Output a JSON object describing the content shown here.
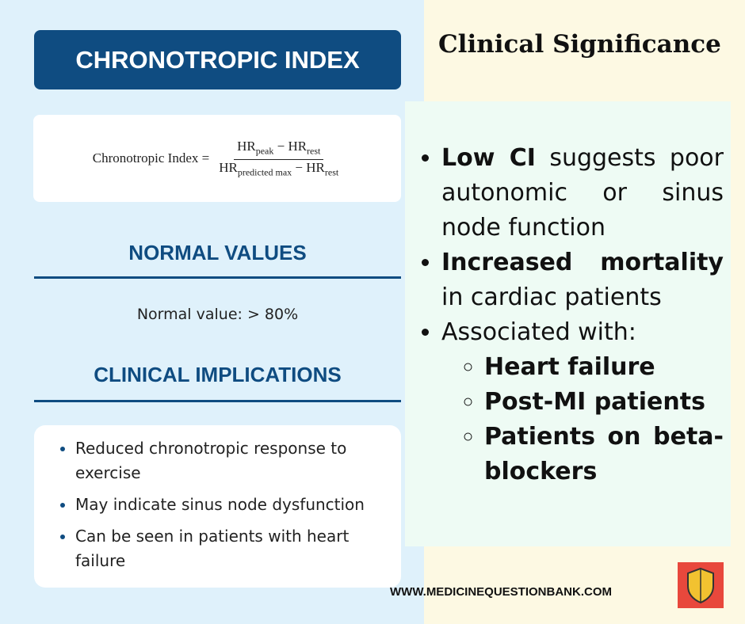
{
  "header": {
    "title": "CHRONOTROPIC INDEX",
    "side_title": "Clinical Significance"
  },
  "formula": {
    "lhs": "Chronotropic Index",
    "equals": "=",
    "minus": "−",
    "numerator": [
      {
        "base": "HR",
        "sub": "peak"
      },
      {
        "base": "HR",
        "sub": "rest"
      }
    ],
    "denominator": [
      {
        "base": "HR",
        "sub": "predicted max"
      },
      {
        "base": "HR",
        "sub": "rest"
      }
    ]
  },
  "normal": {
    "heading": "NORMAL VALUES",
    "text": "Normal value: > 80%"
  },
  "implications": {
    "heading": "CLINICAL IMPLICATIONS",
    "items": [
      "Reduced chronotropic response to exercise",
      "May indicate sinus node dysfunction",
      "Can be seen in patients with heart failure"
    ]
  },
  "significance": {
    "items": [
      {
        "bold": "Low CI",
        "text": "suggests poor autonomic or sinus node function"
      },
      {
        "bold": "Increased mortality",
        "text": "in cardiac patients"
      },
      {
        "text": "Associated with:"
      }
    ],
    "sub_items": [
      "Heart failure",
      "Post-MI patients",
      "Patients on beta-blockers"
    ]
  },
  "footer": {
    "website": "WWW.MEDICINEQUESTIONBANK.COM"
  }
}
